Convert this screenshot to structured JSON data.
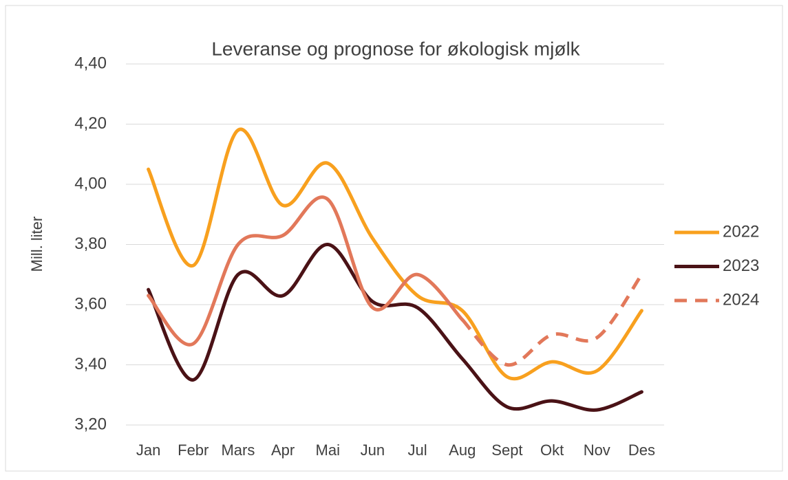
{
  "chart_data": {
    "type": "line",
    "title": "Leveranse og prognose for økologisk mjølk",
    "y_label": "Mill. liter",
    "categories": [
      "Jan",
      "Febr",
      "Mars",
      "Apr",
      "Mai",
      "Jun",
      "Jul",
      "Aug",
      "Sept",
      "Okt",
      "Nov",
      "Des"
    ],
    "series": [
      {
        "name": "2022",
        "color": "#f8a01e",
        "values": [
          4.05,
          3.73,
          4.18,
          3.93,
          4.07,
          3.82,
          3.63,
          3.58,
          3.36,
          3.41,
          3.38,
          3.58
        ]
      },
      {
        "name": "2023",
        "color": "#4a1216",
        "values": [
          3.65,
          3.35,
          3.7,
          3.63,
          3.8,
          3.61,
          3.59,
          3.42,
          3.26,
          3.28,
          3.25,
          3.31
        ]
      },
      {
        "name": "2024",
        "color": "#e2785a",
        "dashed_from": 7,
        "values": [
          3.63,
          3.47,
          3.8,
          3.83,
          3.95,
          3.59,
          3.7,
          3.55,
          3.4,
          3.5,
          3.49,
          3.7
        ]
      }
    ],
    "ylim": [
      3.2,
      4.4
    ],
    "yticks": [
      {
        "value": 3.2,
        "label": "3,20"
      },
      {
        "value": 3.4,
        "label": "3,40"
      },
      {
        "value": 3.6,
        "label": "3,60"
      },
      {
        "value": 3.8,
        "label": "3,80"
      },
      {
        "value": 4.0,
        "label": "4,00"
      },
      {
        "value": 4.2,
        "label": "4,20"
      },
      {
        "value": 4.4,
        "label": "4,40"
      }
    ],
    "grid": true,
    "smooth": true,
    "legend": "right"
  }
}
